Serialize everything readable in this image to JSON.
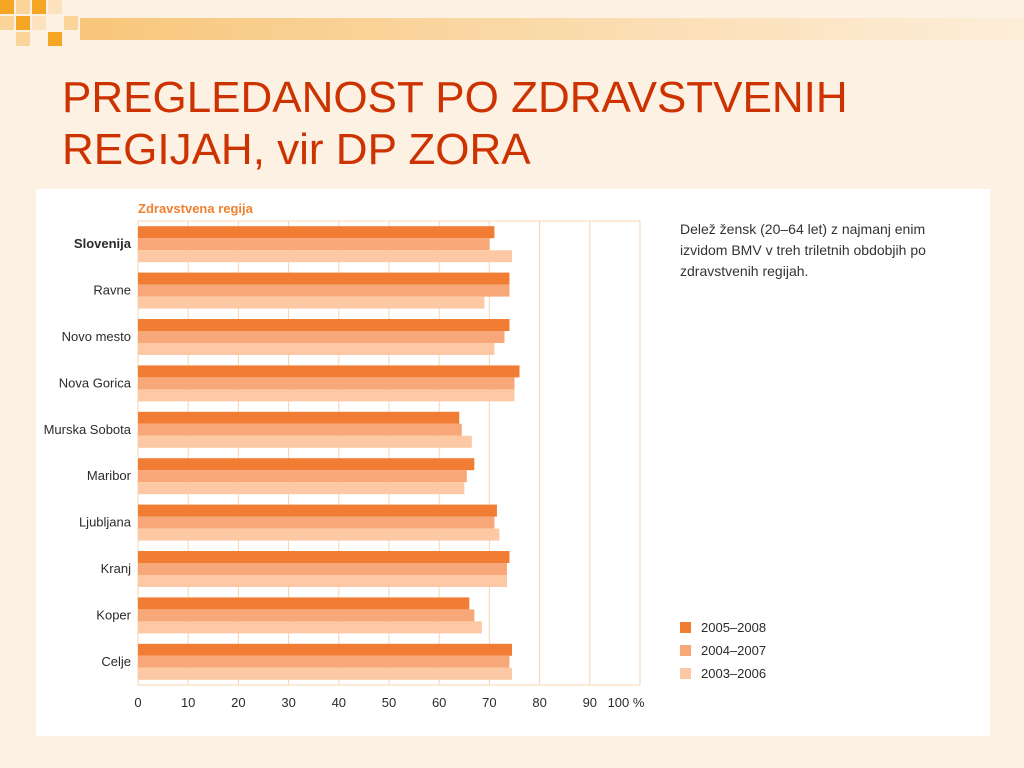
{
  "slide": {
    "title": "PREGLEDANOST PO ZDRAVSTVENIH REGIJAH, vir DP ZORA"
  },
  "theme": {
    "title_color": "#cc3300",
    "background": "#fdf1e4",
    "accent": "#f5a623"
  },
  "chart_data": {
    "type": "bar",
    "orientation": "horizontal",
    "yaxis_title": "Zdravstvena regija",
    "caption": "Delež žensk (20–64 let) z najmanj enim izvidom BMV v treh triletnih obdobjih po zdravstvenih regijah.",
    "categories": [
      "Slovenija",
      "Ravne",
      "Novo mesto",
      "Nova Gorica",
      "Murska Sobota",
      "Maribor",
      "Ljubljana",
      "Kranj",
      "Koper",
      "Celje"
    ],
    "highlight_category": "Slovenija",
    "x_ticks": [
      "0",
      "10",
      "20",
      "30",
      "40",
      "50",
      "60",
      "70",
      "80",
      "90",
      "100 %"
    ],
    "xlim": [
      0,
      100
    ],
    "grid": true,
    "legend_position": "bottom-right",
    "series": [
      {
        "name": "2005–2008",
        "color": "#f07d33",
        "values": [
          71,
          74,
          74,
          76,
          64,
          67,
          71.5,
          74,
          66,
          74.5
        ]
      },
      {
        "name": "2004–2007",
        "color": "#f8a878",
        "values": [
          70,
          74,
          73,
          75,
          64.5,
          65.5,
          71,
          73.5,
          67,
          74
        ]
      },
      {
        "name": "2003–2006",
        "color": "#fcc9a4",
        "values": [
          74.5,
          69,
          71,
          75,
          66.5,
          65,
          72,
          73.5,
          68.5,
          74.5
        ]
      }
    ]
  }
}
